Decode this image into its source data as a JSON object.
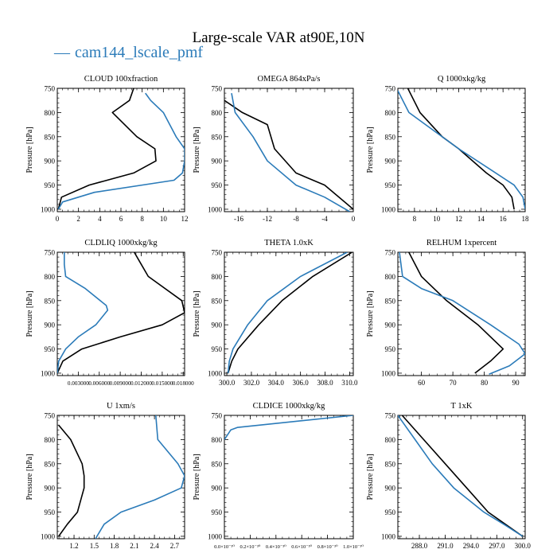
{
  "figure": {
    "title": "Large-scale VAR at90E,10N",
    "legend": [
      {
        "label": "cam144_lscale_pmf",
        "color": "#2b7bb9"
      }
    ],
    "colors": {
      "series_black": "#000000",
      "series_blue": "#2b7bb9"
    }
  },
  "chart_data": [
    {
      "type": "line",
      "title": "CLOUD  100xfraction",
      "ylabel": "Pressure [hPa]",
      "xlim": [
        0,
        12
      ],
      "ylim": [
        1005,
        750
      ],
      "y_reversed": true,
      "xticks": [
        0,
        2,
        4,
        6,
        8,
        10,
        12
      ],
      "xtick_labels": [
        "0",
        "2",
        "4",
        "6",
        "8",
        "10",
        "12"
      ],
      "yticks": [
        750,
        800,
        850,
        900,
        950,
        1000
      ],
      "ytick_labels": [
        "750",
        "800",
        "850",
        "900",
        "950",
        "1000"
      ],
      "series": [
        {
          "color": "#000000",
          "points": [
            [
              7.2,
              750
            ],
            [
              6.8,
              775
            ],
            [
              5.2,
              800
            ],
            [
              7.5,
              850
            ],
            [
              9.2,
              875
            ],
            [
              9.3,
              900
            ],
            [
              7.2,
              925
            ],
            [
              3.0,
              950
            ],
            [
              0.4,
              975
            ],
            [
              0.1,
              1000
            ]
          ]
        },
        {
          "color": "#2b7bb9",
          "points": [
            [
              8.3,
              760
            ],
            [
              8.8,
              775
            ],
            [
              10.0,
              800
            ],
            [
              11.2,
              850
            ],
            [
              12.0,
              875
            ],
            [
              12.0,
              900
            ],
            [
              11.8,
              925
            ],
            [
              11.0,
              940
            ],
            [
              3.5,
              965
            ],
            [
              0.5,
              985
            ],
            [
              0.1,
              1000
            ]
          ]
        }
      ]
    },
    {
      "type": "line",
      "title": "OMEGA  864xPa/s",
      "ylabel": "Pressure [hPa]",
      "xlim": [
        -18,
        0
      ],
      "ylim": [
        1005,
        750
      ],
      "y_reversed": true,
      "xticks": [
        -16,
        -12,
        -8,
        -4,
        0
      ],
      "xtick_labels": [
        "-16",
        "-12",
        "-8",
        "-4",
        "0"
      ],
      "yticks": [
        750,
        800,
        850,
        900,
        950,
        1000
      ],
      "ytick_labels": [
        "750",
        "800",
        "850",
        "900",
        "950",
        "1000"
      ],
      "series": [
        {
          "color": "#000000",
          "points": [
            [
              -18.0,
              775
            ],
            [
              -15.5,
              800
            ],
            [
              -12.0,
              825
            ],
            [
              -11.0,
              875
            ],
            [
              -8.0,
              925
            ],
            [
              -4.0,
              950
            ],
            [
              0.0,
              1000
            ]
          ]
        },
        {
          "color": "#2b7bb9",
          "points": [
            [
              -17.0,
              760
            ],
            [
              -16.5,
              800
            ],
            [
              -14.0,
              850
            ],
            [
              -12.0,
              900
            ],
            [
              -8.0,
              950
            ],
            [
              -4.0,
              975
            ],
            [
              -0.5,
              1005
            ]
          ]
        }
      ]
    },
    {
      "type": "line",
      "title": "Q  1000xkg/kg",
      "ylabel": "Pressure [hPa]",
      "xlim": [
        6.5,
        18
      ],
      "ylim": [
        1005,
        750
      ],
      "y_reversed": true,
      "xticks": [
        8,
        10,
        12,
        14,
        16,
        18
      ],
      "xtick_labels": [
        "8",
        "10",
        "12",
        "14",
        "16",
        "18"
      ],
      "yticks": [
        750,
        800,
        850,
        900,
        950,
        1000
      ],
      "ytick_labels": [
        "750",
        "800",
        "850",
        "900",
        "950",
        "1000"
      ],
      "series": [
        {
          "color": "#000000",
          "points": [
            [
              7.4,
              750
            ],
            [
              8.5,
              800
            ],
            [
              10.5,
              850
            ],
            [
              12.0,
              875
            ],
            [
              14.5,
              925
            ],
            [
              16.0,
              950
            ],
            [
              16.8,
              975
            ],
            [
              17.0,
              1000
            ]
          ]
        },
        {
          "color": "#2b7bb9",
          "points": [
            [
              6.5,
              755
            ],
            [
              7.5,
              800
            ],
            [
              9.0,
              825
            ],
            [
              12.0,
              875
            ],
            [
              15.0,
              920
            ],
            [
              17.0,
              950
            ],
            [
              17.8,
              975
            ],
            [
              18.0,
              1000
            ]
          ]
        }
      ]
    },
    {
      "type": "line",
      "title": "CLDLIQ  1000xkg/kg",
      "ylabel": "Pressure [hPa]",
      "xlim": [
        0,
        0.0182
      ],
      "ylim": [
        1005,
        750
      ],
      "y_reversed": true,
      "xticks": [
        0.003,
        0.006,
        0.009,
        0.012,
        0.015,
        0.018
      ],
      "xtick_labels": [
        "0.003000",
        "0.006000",
        "0.009000",
        "0.012000",
        "0.015000",
        "0.018000"
      ],
      "yticks": [
        750,
        800,
        850,
        900,
        950,
        1000
      ],
      "ytick_labels": [
        "750",
        "800",
        "850",
        "900",
        "950",
        "1000"
      ],
      "series": [
        {
          "color": "#000000",
          "points": [
            [
              0.011,
              750
            ],
            [
              0.012,
              775
            ],
            [
              0.013,
              800
            ],
            [
              0.0178,
              850
            ],
            [
              0.0182,
              875
            ],
            [
              0.015,
              900
            ],
            [
              0.009,
              925
            ],
            [
              0.0035,
              950
            ],
            [
              0.0008,
              975
            ],
            [
              0.0,
              1000
            ]
          ]
        },
        {
          "color": "#2b7bb9",
          "points": [
            [
              0.001,
              750
            ],
            [
              0.001,
              775
            ],
            [
              0.0012,
              800
            ],
            [
              0.004,
              825
            ],
            [
              0.007,
              860
            ],
            [
              0.0072,
              870
            ],
            [
              0.0055,
              900
            ],
            [
              0.003,
              925
            ],
            [
              0.0012,
              950
            ],
            [
              0.0002,
              975
            ],
            [
              0.0,
              1000
            ]
          ]
        }
      ]
    },
    {
      "type": "line",
      "title": "THETA  1.0xK",
      "ylabel": "Pressure [hPa]",
      "xlim": [
        299.8,
        310.3
      ],
      "ylim": [
        1005,
        750
      ],
      "y_reversed": true,
      "xticks": [
        300.0,
        302.0,
        304.0,
        306.0,
        308.0,
        310.0
      ],
      "xtick_labels": [
        "300.0",
        "302.0",
        "304.0",
        "306.0",
        "308.0",
        "310.0"
      ],
      "yticks": [
        750,
        800,
        850,
        900,
        950,
        1000
      ],
      "ytick_labels": [
        "750",
        "800",
        "850",
        "900",
        "950",
        "1000"
      ],
      "series": [
        {
          "color": "#000000",
          "points": [
            [
              310.2,
              750
            ],
            [
              307.0,
              800
            ],
            [
              304.5,
              850
            ],
            [
              302.6,
              900
            ],
            [
              300.9,
              950
            ],
            [
              300.4,
              975
            ],
            [
              300.1,
              1000
            ]
          ]
        },
        {
          "color": "#2b7bb9",
          "points": [
            [
              309.8,
              750
            ],
            [
              306.0,
              800
            ],
            [
              303.3,
              850
            ],
            [
              301.7,
              900
            ],
            [
              300.5,
              950
            ],
            [
              300.2,
              975
            ],
            [
              300.1,
              1000
            ]
          ]
        }
      ]
    },
    {
      "type": "line",
      "title": "RELHUM  1xpercent",
      "ylabel": "Pressure [hPa]",
      "xlim": [
        52.5,
        93
      ],
      "ylim": [
        1005,
        750
      ],
      "y_reversed": true,
      "xticks": [
        60,
        70,
        80,
        90
      ],
      "xtick_labels": [
        "60",
        "70",
        "80",
        "90"
      ],
      "yticks": [
        750,
        800,
        850,
        900,
        950,
        1000
      ],
      "ytick_labels": [
        "750",
        "800",
        "850",
        "900",
        "950",
        "1000"
      ],
      "series": [
        {
          "color": "#000000",
          "points": [
            [
              56.0,
              750
            ],
            [
              60.0,
              800
            ],
            [
              68.0,
              850
            ],
            [
              78.0,
              900
            ],
            [
              86.0,
              950
            ],
            [
              82.0,
              975
            ],
            [
              77.0,
              1000
            ]
          ]
        },
        {
          "color": "#2b7bb9",
          "points": [
            [
              53.0,
              750
            ],
            [
              54.0,
              800
            ],
            [
              60.0,
              825
            ],
            [
              70.0,
              850
            ],
            [
              82.0,
              900
            ],
            [
              91.0,
              940
            ],
            [
              93.0,
              960
            ],
            [
              88.0,
              985
            ],
            [
              81.5,
              1002
            ]
          ]
        }
      ]
    },
    {
      "type": "line",
      "title": "U  1xm/s",
      "ylabel": "Pressure [hPa]",
      "xlim": [
        0.95,
        2.85
      ],
      "ylim": [
        1005,
        750
      ],
      "y_reversed": true,
      "xticks": [
        1.2,
        1.5,
        1.8,
        2.1,
        2.4,
        2.7
      ],
      "xtick_labels": [
        "1.2",
        "1.5",
        "1.8",
        "2.1",
        "2.4",
        "2.7"
      ],
      "yticks": [
        750,
        800,
        850,
        900,
        950,
        1000
      ],
      "ytick_labels": [
        "750",
        "800",
        "850",
        "900",
        "950",
        "1000"
      ],
      "series": [
        {
          "color": "#000000",
          "points": [
            [
              0.97,
              770
            ],
            [
              1.15,
              800
            ],
            [
              1.32,
              850
            ],
            [
              1.35,
              875
            ],
            [
              1.35,
              900
            ],
            [
              1.25,
              950
            ],
            [
              1.1,
              975
            ],
            [
              0.97,
              1000
            ]
          ]
        },
        {
          "color": "#2b7bb9",
          "points": [
            [
              2.42,
              750
            ],
            [
              2.45,
              800
            ],
            [
              2.75,
              850
            ],
            [
              2.85,
              875
            ],
            [
              2.8,
              900
            ],
            [
              2.4,
              925
            ],
            [
              1.9,
              950
            ],
            [
              1.65,
              975
            ],
            [
              1.52,
              1005
            ]
          ]
        }
      ]
    },
    {
      "type": "line",
      "title": "CLDICE  1000xkg/kg",
      "ylabel": "Pressure [hPa]",
      "xlim": [
        0,
        1e-30
      ],
      "ylim": [
        1005,
        750
      ],
      "y_reversed": true,
      "xticks": [
        0,
        2e-31,
        4e-31,
        6e-31,
        8e-31,
        1e-30
      ],
      "xtick_labels": [
        "0.0×10⁻³⁰",
        "0.2×10⁻³⁰",
        "0.4×10⁻³⁰",
        "0.6×10⁻³⁰",
        "0.8×10⁻³⁰",
        "1.0×10⁻³⁰"
      ],
      "yticks": [
        750,
        800,
        850,
        900,
        950,
        1000
      ],
      "ytick_labels": [
        "750",
        "800",
        "850",
        "900",
        "950",
        "1000"
      ],
      "series": [
        {
          "color": "#2b7bb9",
          "points": [
            [
              1e-30,
              750
            ],
            [
              1e-31,
              775
            ],
            [
              5e-32,
              780
            ],
            [
              0.0,
              800
            ]
          ]
        }
      ]
    },
    {
      "type": "line",
      "title": "T  1xK",
      "ylabel": "Pressure [hPa]",
      "xlim": [
        285.5,
        300.3
      ],
      "ylim": [
        1005,
        750
      ],
      "y_reversed": true,
      "xticks": [
        288.0,
        291.0,
        294.0,
        297.0,
        300.0
      ],
      "xtick_labels": [
        "288.0",
        "291.0",
        "294.0",
        "297.0",
        "300.0"
      ],
      "yticks": [
        750,
        800,
        850,
        900,
        950,
        1000
      ],
      "ytick_labels": [
        "750",
        "800",
        "850",
        "900",
        "950",
        "1000"
      ],
      "series": [
        {
          "color": "#000000",
          "points": [
            [
              286.0,
              750
            ],
            [
              288.5,
              800
            ],
            [
              291.0,
              850
            ],
            [
              293.5,
              900
            ],
            [
              296.0,
              950
            ],
            [
              298.0,
              975
            ],
            [
              300.0,
              1000
            ]
          ]
        },
        {
          "color": "#2b7bb9",
          "points": [
            [
              285.5,
              750
            ],
            [
              287.5,
              800
            ],
            [
              289.5,
              850
            ],
            [
              292.0,
              900
            ],
            [
              295.5,
              950
            ],
            [
              297.8,
              975
            ],
            [
              300.0,
              1000
            ]
          ]
        }
      ]
    }
  ]
}
